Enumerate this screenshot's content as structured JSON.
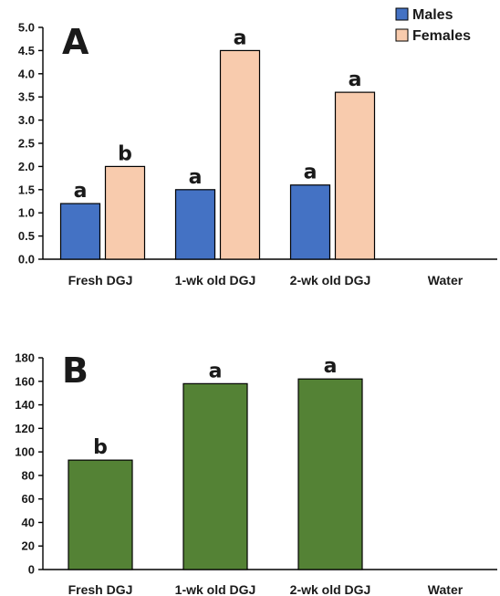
{
  "chart_data": [
    {
      "panel_label": "A",
      "type": "bar",
      "categories": [
        "Fresh DGJ",
        "1-wk old DGJ",
        "2-wk old DGJ",
        "Water"
      ],
      "series": [
        {
          "name": "Males",
          "color": "#4472c4",
          "values": [
            1.2,
            1.5,
            1.6,
            0
          ],
          "labels": [
            "a",
            "a",
            "a",
            ""
          ]
        },
        {
          "name": "Females",
          "color": "#f8cbad",
          "values": [
            2.0,
            4.5,
            3.6,
            0
          ],
          "labels": [
            "b",
            "a",
            "a",
            ""
          ]
        }
      ],
      "ylim": [
        0,
        5
      ],
      "yticks": [
        "0.0",
        "0.5",
        "1.0",
        "1.5",
        "2.0",
        "2.5",
        "3.0",
        "3.5",
        "4.0",
        "4.5",
        "5.0"
      ],
      "legend": "top-right",
      "grid": false
    },
    {
      "panel_label": "B",
      "type": "bar",
      "categories": [
        "Fresh DGJ",
        "1-wk old DGJ",
        "2-wk old DGJ",
        "Water"
      ],
      "series": [
        {
          "color": "#548235",
          "values": [
            93,
            158,
            162,
            0
          ],
          "labels": [
            "b",
            "a",
            "a",
            ""
          ]
        }
      ],
      "ylim": [
        0,
        180
      ],
      "yticks": [
        "0",
        "20",
        "40",
        "60",
        "80",
        "100",
        "120",
        "140",
        "160",
        "180"
      ],
      "grid": false
    }
  ]
}
